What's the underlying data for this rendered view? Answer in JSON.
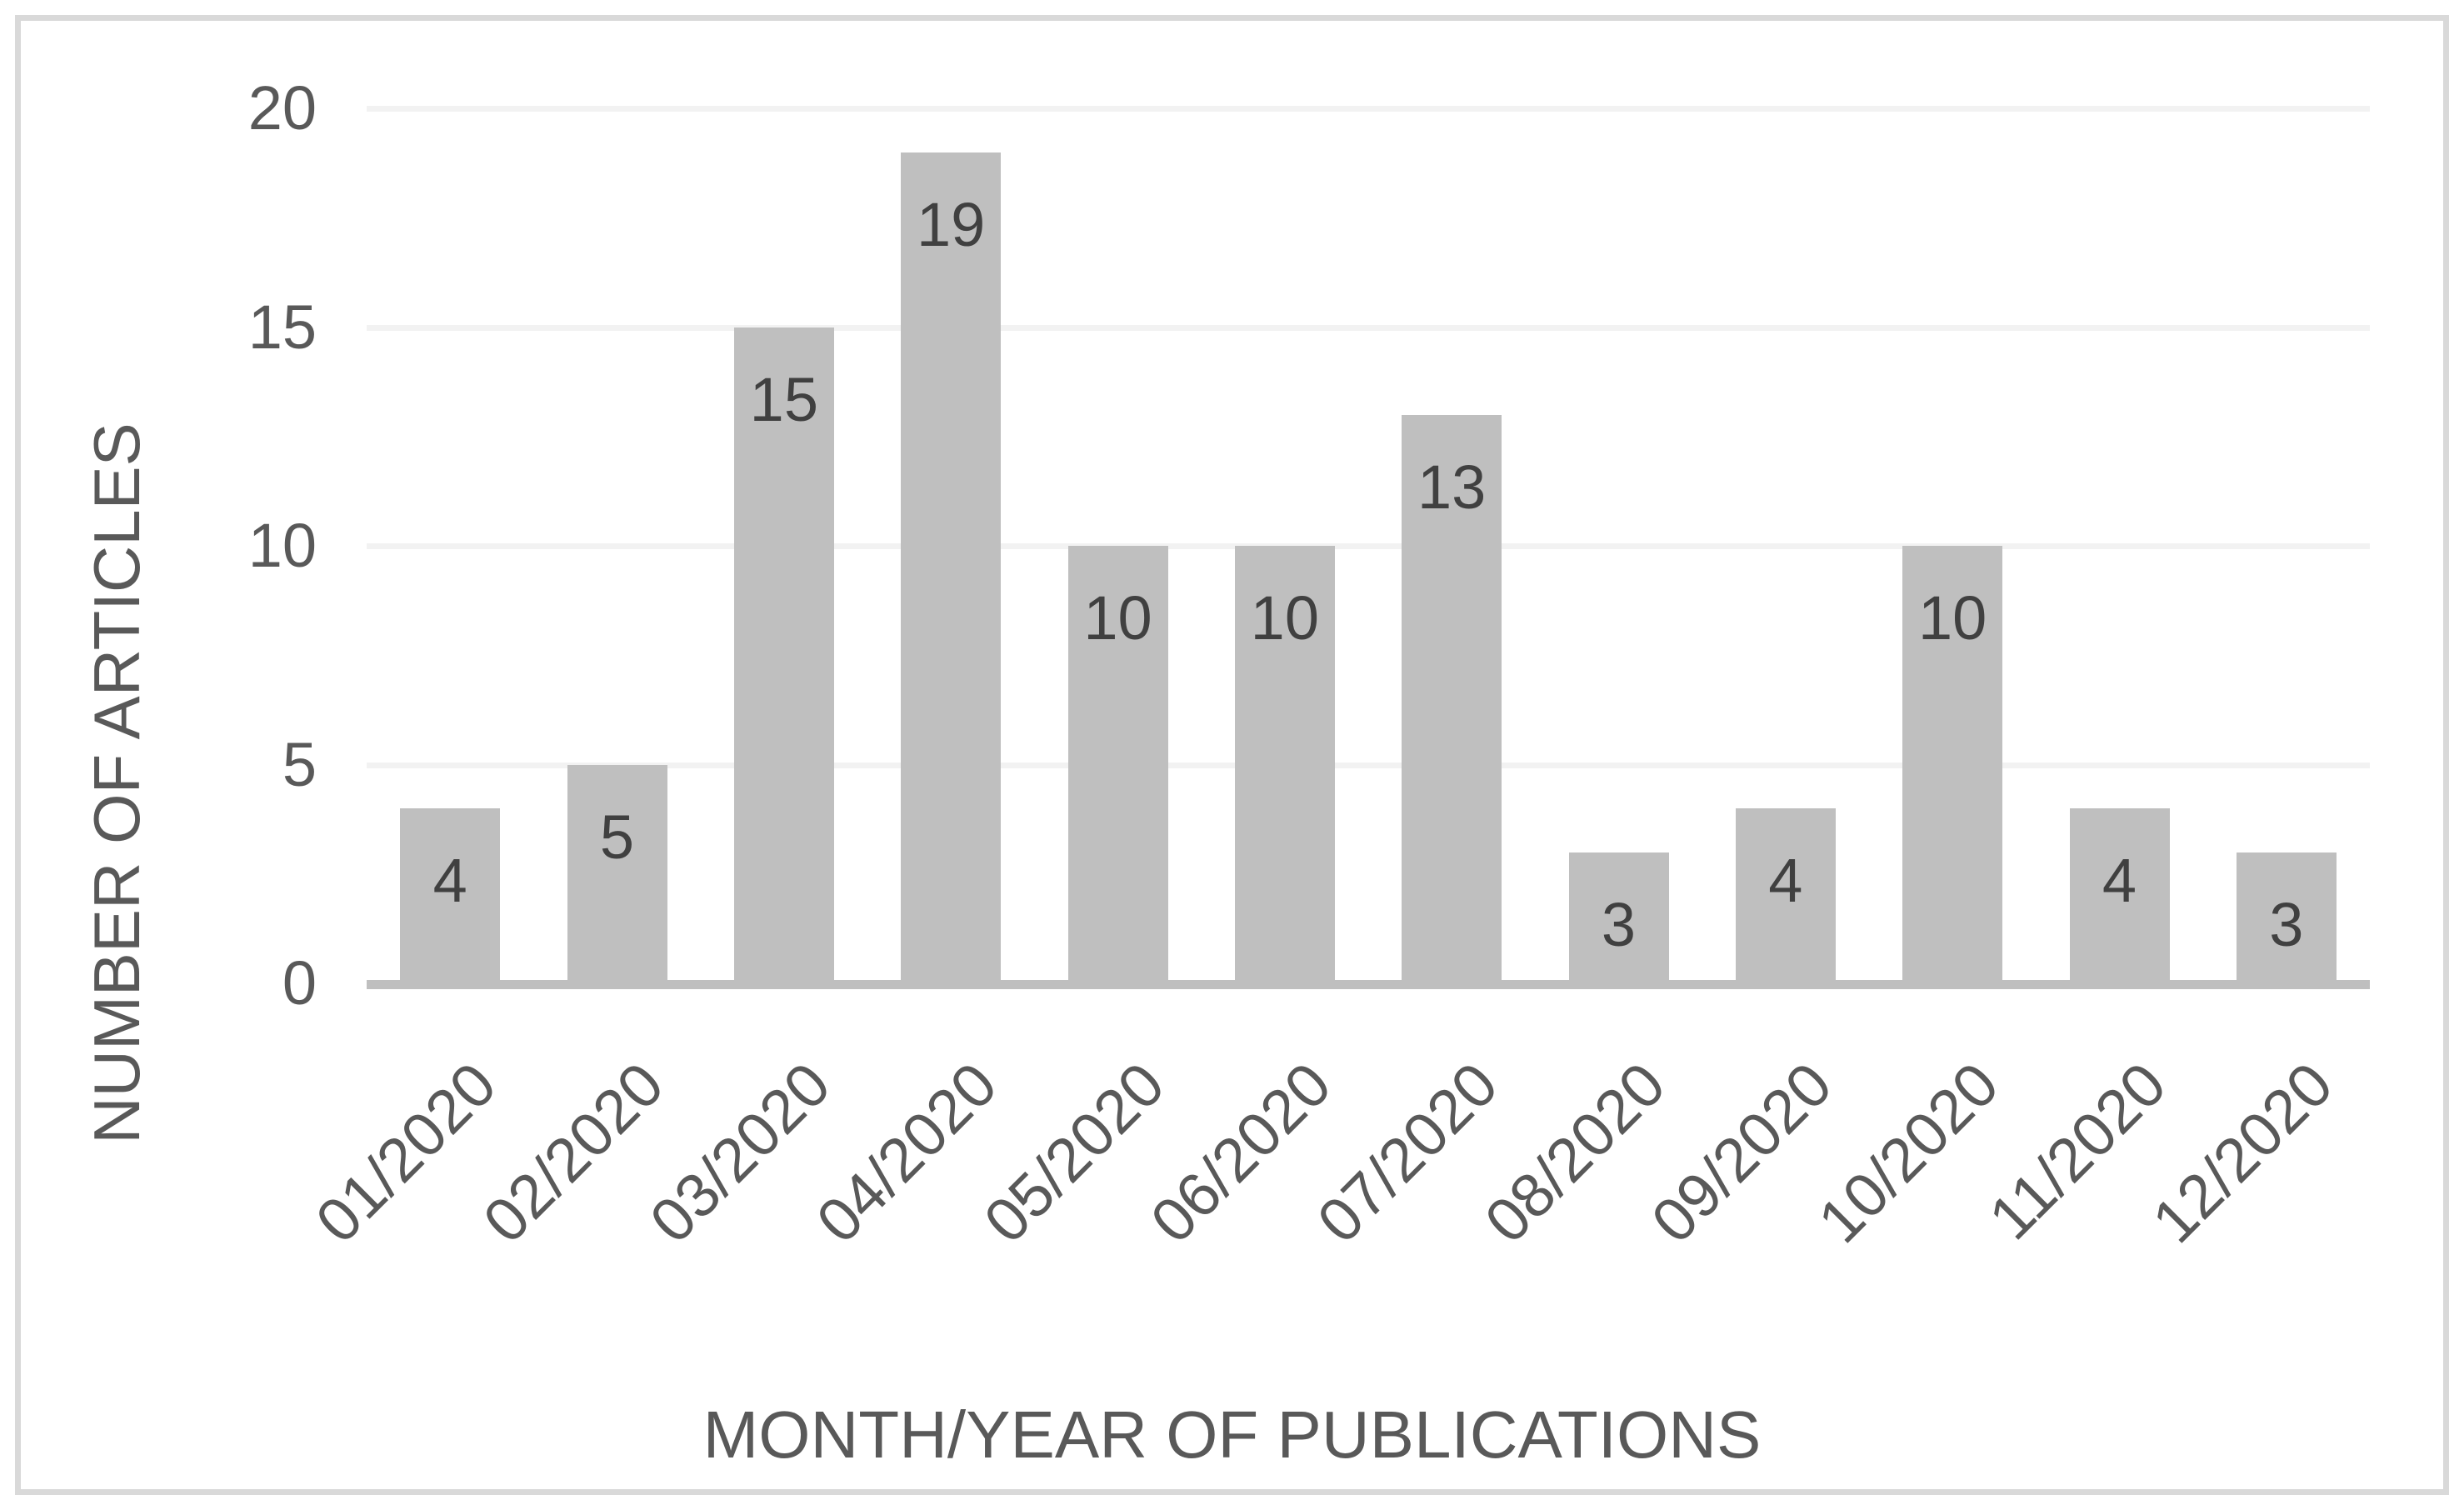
{
  "chart_data": {
    "type": "bar",
    "title": "",
    "categories": [
      "01/2020",
      "02/2020",
      "03/2020",
      "04/2020",
      "05/2020",
      "06/2020",
      "07/2020",
      "08/2020",
      "09/2020",
      "10/2020",
      "11/2020",
      "12/2020"
    ],
    "values": [
      4,
      5,
      15,
      19,
      10,
      10,
      13,
      3,
      4,
      10,
      4,
      3
    ],
    "xlabel": "MONTH/YEAR OF PUBLICATIONS",
    "ylabel": "NUMBER OF ARTICLES",
    "ylim": [
      0,
      20
    ],
    "yticks": [
      0,
      5,
      10,
      15,
      20
    ],
    "grid": "horizontal",
    "legend": "none",
    "data_label_position": "inside-end",
    "bar_color": "#BFBFBF",
    "axis_line_color": "#BFBFBF",
    "gridline_color": "#F2F2F2",
    "tick_label_color": "#595959",
    "axis_title_color": "#595959",
    "data_label_color": "#404040",
    "border_color": "#D9D9D9",
    "background": "#FFFFFF"
  }
}
